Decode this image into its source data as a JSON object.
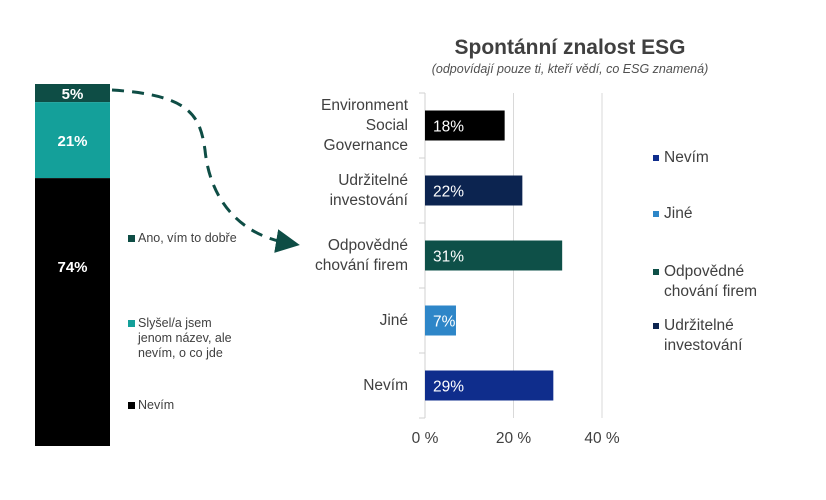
{
  "chart_data": [
    {
      "type": "bar",
      "orientation": "vertical-stacked",
      "series": [
        {
          "name": "Ano, vím to dobře",
          "value": 5,
          "label": "5%",
          "color": "#0e4d45"
        },
        {
          "name": "Slyšel/a jsem jenom název, ale nevím, o co jde",
          "value": 21,
          "label": "21%",
          "color": "#14a09a"
        },
        {
          "name": "Nevím",
          "value": 74,
          "label": "74%",
          "color": "#000000"
        }
      ],
      "legend": "right"
    },
    {
      "type": "bar",
      "orientation": "horizontal",
      "title": "Spontánní znalost ESG",
      "subtitle": "(odpovídají pouze ti, kteří vědí, co ESG znamená)",
      "categories": [
        "Environment\nSocial\nGovernance",
        "Udržitelné\ninvestování",
        "Odpovědné\nchování firem",
        "Jiné",
        "Nevím"
      ],
      "values": [
        18,
        22,
        31,
        7,
        29
      ],
      "data_labels": [
        "18%",
        "22%",
        "31%",
        "7%",
        "29%"
      ],
      "colors": [
        "#000000",
        "#0c2450",
        "#0e5048",
        "#2e86c8",
        "#0f2d8c"
      ],
      "xlim": [
        0,
        40
      ],
      "ticks": [
        "0 %",
        "20 %",
        "40 %"
      ],
      "grid": true,
      "legend": [
        {
          "name": "Nevím",
          "color": "#0f2d8c"
        },
        {
          "name": "Jiné",
          "color": "#2e86c8"
        },
        {
          "name": "Odpovědné\nchování firem",
          "color": "#0e5048"
        },
        {
          "name": "Udržitelné\ninvestování",
          "color": "#0c2450"
        }
      ]
    }
  ]
}
